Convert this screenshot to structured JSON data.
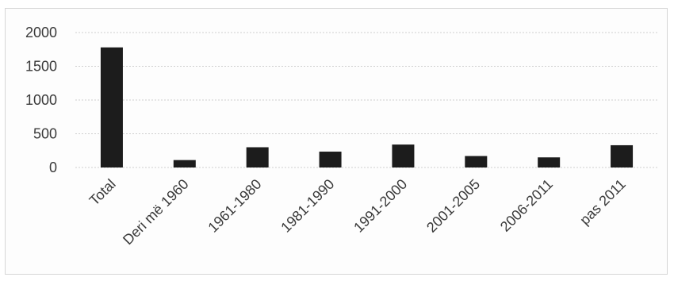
{
  "chart_data": {
    "type": "bar",
    "title": "",
    "xlabel": "",
    "ylabel": "",
    "categories": [
      "Total",
      "Deri më 1960",
      "1961-1980",
      "1981-1990",
      "1991-2000",
      "2001-2005",
      "2006-2011",
      "pas 2011"
    ],
    "values": [
      1780,
      110,
      300,
      235,
      340,
      170,
      150,
      330
    ],
    "yticks": [
      "0",
      "500",
      "1000",
      "1500",
      "2000"
    ],
    "ylim": [
      0,
      2000
    ],
    "grid": true,
    "legend": "none",
    "bar_color": "#1c1c1c",
    "grid_color": "#cfcfcf",
    "label_rotation_deg": -45
  }
}
